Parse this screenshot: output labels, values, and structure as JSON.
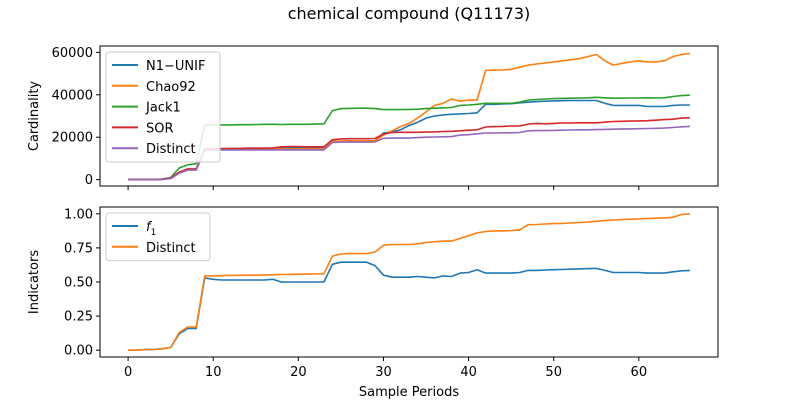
{
  "figure": {
    "title": "chemical compound (Q11173)"
  },
  "chart_data": [
    {
      "type": "line",
      "ylabel": "Cardinality",
      "xlabel": "",
      "xlim": [
        -3.3,
        69.3
      ],
      "ylim": [
        -3000,
        63000
      ],
      "xticks": [
        0,
        10,
        20,
        30,
        40,
        50,
        60
      ],
      "show_xticklabels": false,
      "yticks": [
        0,
        20000,
        40000,
        60000
      ],
      "yticklabels": [
        "0",
        "20000",
        "40000",
        "60000"
      ],
      "grid": false,
      "legend_placement": "upper-left",
      "x": [
        0,
        1,
        2,
        3,
        4,
        5,
        6,
        7,
        8,
        9,
        10,
        11,
        12,
        13,
        14,
        15,
        16,
        17,
        18,
        19,
        20,
        21,
        22,
        23,
        24,
        25,
        26,
        27,
        28,
        29,
        30,
        31,
        32,
        33,
        34,
        35,
        36,
        37,
        38,
        39,
        40,
        41,
        42,
        43,
        44,
        45,
        46,
        47,
        48,
        49,
        50,
        51,
        52,
        53,
        54,
        55,
        56,
        57,
        58,
        59,
        60,
        61,
        62,
        63,
        64,
        65,
        66
      ],
      "series": [
        {
          "name": "N1−UNIF",
          "color": "#1f77b4",
          "values": [
            0,
            0,
            0,
            0,
            200,
            800,
            3500,
            5000,
            5000,
            14500,
            14500,
            14600,
            14700,
            14700,
            14800,
            14800,
            14800,
            14900,
            14900,
            15000,
            15000,
            15000,
            15000,
            15000,
            18000,
            18000,
            18200,
            18200,
            18200,
            18200,
            22000,
            22500,
            23500,
            25500,
            27000,
            29000,
            30000,
            30500,
            30800,
            31000,
            31200,
            31500,
            35500,
            35500,
            35700,
            35800,
            36200,
            36500,
            36800,
            37000,
            37100,
            37200,
            37300,
            37300,
            37300,
            37300,
            36000,
            35000,
            35000,
            35000,
            35000,
            34500,
            34500,
            34500,
            35000,
            35200,
            35200
          ]
        },
        {
          "name": "Chao92",
          "color": "#ff7f0e",
          "values": [
            0,
            0,
            0,
            0,
            100,
            500,
            3500,
            5000,
            5000,
            14000,
            14000,
            14200,
            14200,
            14300,
            14400,
            14400,
            14400,
            14500,
            14500,
            14500,
            14500,
            14500,
            14500,
            14500,
            18000,
            18200,
            18300,
            18300,
            18300,
            18300,
            21000,
            23000,
            25000,
            26500,
            29000,
            32000,
            35000,
            36000,
            38000,
            37000,
            37500,
            37500,
            51500,
            51600,
            51700,
            52000,
            53000,
            54000,
            54500,
            55000,
            55500,
            56000,
            56500,
            57000,
            58000,
            59000,
            56000,
            54000,
            54800,
            55500,
            56000,
            55500,
            55500,
            56000,
            58000,
            59000,
            59500
          ]
        },
        {
          "name": "Jack1",
          "color": "#2ca02c",
          "values": [
            0,
            0,
            0,
            0,
            300,
            1000,
            5500,
            7000,
            7500,
            25800,
            25800,
            25800,
            25800,
            25900,
            25900,
            26000,
            26100,
            26100,
            26000,
            26100,
            26100,
            26100,
            26200,
            26300,
            32500,
            33500,
            33600,
            33700,
            33700,
            33500,
            33000,
            33000,
            33000,
            33100,
            33200,
            33500,
            33700,
            33800,
            34000,
            35000,
            35200,
            35500,
            36000,
            36000,
            36000,
            36000,
            36500,
            37500,
            37800,
            38000,
            38200,
            38300,
            38400,
            38500,
            38600,
            38800,
            38600,
            38400,
            38400,
            38500,
            38500,
            38600,
            38500,
            38600,
            39200,
            39600,
            39800
          ]
        },
        {
          "name": "SOR",
          "color": "#d62728",
          "values": [
            0,
            0,
            0,
            0,
            200,
            800,
            3500,
            5000,
            5000,
            14500,
            14500,
            14600,
            14700,
            14700,
            14800,
            14800,
            14800,
            14900,
            15500,
            15600,
            15600,
            15500,
            15500,
            15500,
            18800,
            19200,
            19300,
            19300,
            19300,
            19400,
            21500,
            22200,
            22300,
            22300,
            22300,
            22400,
            22500,
            22700,
            22800,
            23000,
            23300,
            23500,
            24800,
            25000,
            25100,
            25300,
            25300,
            26200,
            26500,
            26300,
            26500,
            26700,
            26700,
            26800,
            26800,
            26800,
            27100,
            27400,
            27500,
            27600,
            27700,
            27800,
            28000,
            28300,
            28500,
            29000,
            29200
          ]
        },
        {
          "name": "Distinct",
          "color": "#9467bd",
          "values": [
            0,
            0,
            0,
            0,
            100,
            500,
            3000,
            4500,
            4500,
            13800,
            13900,
            14000,
            14000,
            14000,
            14000,
            14000,
            14000,
            14000,
            14000,
            14000,
            14000,
            14000,
            14000,
            14000,
            17500,
            17700,
            17700,
            17700,
            17700,
            17800,
            19500,
            19600,
            19600,
            19600,
            19800,
            20000,
            20100,
            20200,
            20300,
            21000,
            21200,
            21600,
            22000,
            22000,
            22100,
            22100,
            22200,
            23000,
            23100,
            23100,
            23200,
            23300,
            23400,
            23500,
            23500,
            23600,
            23700,
            23800,
            23900,
            23900,
            24000,
            24100,
            24200,
            24300,
            24600,
            24900,
            25100
          ]
        }
      ]
    },
    {
      "type": "line",
      "ylabel": "Indicators",
      "xlabel": "Sample Periods",
      "xlim": [
        -3.3,
        69.3
      ],
      "ylim": [
        -0.05,
        1.05
      ],
      "xticks": [
        0,
        10,
        20,
        30,
        40,
        50,
        60
      ],
      "xticklabels": [
        "0",
        "10",
        "20",
        "30",
        "40",
        "50",
        "60"
      ],
      "yticks": [
        0,
        0.25,
        0.5,
        0.75,
        1.0
      ],
      "yticklabels": [
        "0.00",
        "0.25",
        "0.50",
        "0.75",
        "1.00"
      ],
      "grid": false,
      "legend_placement": "upper-left",
      "x": [
        0,
        1,
        2,
        3,
        4,
        5,
        6,
        7,
        8,
        9,
        10,
        11,
        12,
        13,
        14,
        15,
        16,
        17,
        18,
        19,
        20,
        21,
        22,
        23,
        24,
        25,
        26,
        27,
        28,
        29,
        30,
        31,
        32,
        33,
        34,
        35,
        36,
        37,
        38,
        39,
        40,
        41,
        42,
        43,
        44,
        45,
        46,
        47,
        48,
        49,
        50,
        51,
        52,
        53,
        54,
        55,
        56,
        57,
        58,
        59,
        60,
        61,
        62,
        63,
        64,
        65,
        66
      ],
      "series": [
        {
          "name": "f",
          "name_subscript": "1",
          "color": "#1f77b4",
          "values": [
            0,
            0,
            0.005,
            0.005,
            0.01,
            0.02,
            0.12,
            0.16,
            0.16,
            0.53,
            0.52,
            0.515,
            0.515,
            0.515,
            0.515,
            0.515,
            0.515,
            0.52,
            0.5,
            0.5,
            0.5,
            0.5,
            0.5,
            0.5,
            0.63,
            0.645,
            0.645,
            0.645,
            0.645,
            0.62,
            0.55,
            0.535,
            0.535,
            0.535,
            0.54,
            0.535,
            0.53,
            0.545,
            0.54,
            0.565,
            0.57,
            0.59,
            0.565,
            0.565,
            0.565,
            0.565,
            0.57,
            0.585,
            0.585,
            0.588,
            0.59,
            0.592,
            0.594,
            0.596,
            0.598,
            0.6,
            0.585,
            0.57,
            0.57,
            0.57,
            0.57,
            0.565,
            0.565,
            0.565,
            0.575,
            0.582,
            0.585
          ]
        },
        {
          "name": "Distinct",
          "color": "#ff7f0e",
          "values": [
            0,
            0,
            0.005,
            0.005,
            0.01,
            0.02,
            0.13,
            0.17,
            0.17,
            0.545,
            0.545,
            0.547,
            0.548,
            0.549,
            0.55,
            0.55,
            0.552,
            0.553,
            0.555,
            0.556,
            0.557,
            0.558,
            0.559,
            0.56,
            0.69,
            0.705,
            0.708,
            0.708,
            0.708,
            0.72,
            0.77,
            0.775,
            0.775,
            0.775,
            0.78,
            0.79,
            0.795,
            0.8,
            0.8,
            0.82,
            0.84,
            0.86,
            0.87,
            0.875,
            0.875,
            0.878,
            0.882,
            0.92,
            0.922,
            0.925,
            0.928,
            0.93,
            0.933,
            0.936,
            0.94,
            0.945,
            0.95,
            0.955,
            0.958,
            0.96,
            0.963,
            0.965,
            0.968,
            0.97,
            0.975,
            0.995,
            1.0
          ]
        }
      ]
    }
  ]
}
